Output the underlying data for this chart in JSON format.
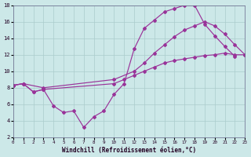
{
  "xlabel": "Windchill (Refroidissement éolien,°C)",
  "line_color": "#993399",
  "bg_color": "#cce8e8",
  "grid_color": "#aacccc",
  "xlim": [
    0,
    23
  ],
  "ylim": [
    2,
    18
  ],
  "xticks": [
    0,
    1,
    2,
    3,
    4,
    5,
    6,
    7,
    8,
    9,
    10,
    11,
    12,
    13,
    14,
    15,
    16,
    17,
    18,
    19,
    20,
    21,
    22,
    23
  ],
  "yticks": [
    2,
    4,
    6,
    8,
    10,
    12,
    14,
    16,
    18
  ],
  "line1_x": [
    0,
    1,
    2,
    3,
    4,
    5,
    6,
    7,
    8,
    9,
    10,
    11,
    12,
    13,
    14,
    15,
    16,
    17,
    18,
    19,
    20,
    21,
    22,
    23
  ],
  "line1_y": [
    8.3,
    8.5,
    7.5,
    7.8,
    5.8,
    5.0,
    5.2,
    3.2,
    4.5,
    5.2,
    7.2,
    8.5,
    12.7,
    15.2,
    16.2,
    17.2,
    17.6,
    18.0,
    18.0,
    15.7,
    14.3,
    13.0,
    11.8,
    null
  ],
  "line2_x": [
    0,
    1,
    3,
    10,
    12,
    13,
    14,
    15,
    16,
    17,
    18,
    19,
    20,
    21,
    22,
    23
  ],
  "line2_y": [
    8.3,
    8.5,
    8.0,
    9.0,
    10.0,
    11.0,
    12.2,
    13.2,
    14.2,
    15.0,
    15.5,
    16.0,
    15.5,
    14.5,
    13.2,
    12.0
  ],
  "line3_x": [
    0,
    1,
    2,
    3,
    10,
    11,
    12,
    13,
    14,
    15,
    16,
    17,
    18,
    19,
    20,
    21,
    22,
    23
  ],
  "line3_y": [
    8.3,
    8.5,
    7.5,
    7.8,
    8.5,
    9.0,
    9.5,
    10.0,
    10.5,
    11.0,
    11.3,
    11.5,
    11.7,
    11.9,
    12.0,
    12.2,
    12.0,
    12.0
  ]
}
